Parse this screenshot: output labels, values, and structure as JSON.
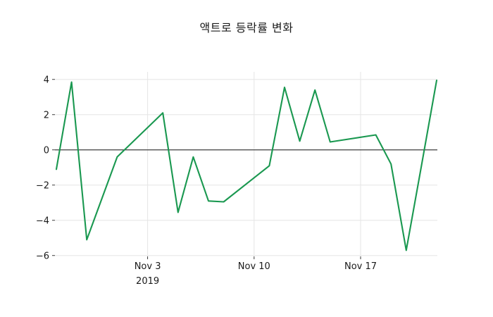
{
  "title": "액트로 등락률 변화",
  "colors": {
    "line": "#1a9850",
    "zero_line": "#3f3f3f",
    "grid": "#e5e5e5",
    "tick": "#262626",
    "text": "#1a1a1a",
    "background": "#ffffff"
  },
  "chart_data": {
    "type": "line",
    "title": "액트로 등락률 변화",
    "xlabel": "",
    "ylabel": "",
    "legend": "none",
    "grid": true,
    "zero_line": true,
    "line_color": "#1a9850",
    "ylim": [
      -6.05,
      4.43
    ],
    "xlim_days": [
      -0.093,
      25.046
    ],
    "y_ticks": [
      4,
      2,
      0,
      -2,
      -4,
      -6
    ],
    "x_ticks": [
      {
        "day": 6,
        "label": "Nov 3",
        "sublabel": "2019"
      },
      {
        "day": 13,
        "label": "Nov 10",
        "sublabel": ""
      },
      {
        "day": 20,
        "label": "Nov 17",
        "sublabel": ""
      }
    ],
    "points": [
      {
        "date": "2019-10-28",
        "day": 0,
        "value": -1.1
      },
      {
        "date": "2019-10-29",
        "day": 1,
        "value": 3.85
      },
      {
        "date": "2019-10-30",
        "day": 2,
        "value": -5.1
      },
      {
        "date": "2019-10-31",
        "day": 3,
        "value": -2.75
      },
      {
        "date": "2019-11-01",
        "day": 4,
        "value": -0.4
      },
      {
        "date": "2019-11-04",
        "day": 7,
        "value": 2.1
      },
      {
        "date": "2019-11-05",
        "day": 8,
        "value": -3.55
      },
      {
        "date": "2019-11-06",
        "day": 9,
        "value": -0.4
      },
      {
        "date": "2019-11-07",
        "day": 10,
        "value": -2.9
      },
      {
        "date": "2019-11-08",
        "day": 11,
        "value": -2.95
      },
      {
        "date": "2019-11-11",
        "day": 14,
        "value": -0.9
      },
      {
        "date": "2019-11-12",
        "day": 15,
        "value": 3.55
      },
      {
        "date": "2019-11-13",
        "day": 16,
        "value": 0.5
      },
      {
        "date": "2019-11-14",
        "day": 17,
        "value": 3.4
      },
      {
        "date": "2019-11-15",
        "day": 18,
        "value": 0.45
      },
      {
        "date": "2019-11-18",
        "day": 21,
        "value": 0.85
      },
      {
        "date": "2019-11-19",
        "day": 22,
        "value": -0.8
      },
      {
        "date": "2019-11-20",
        "day": 23,
        "value": -5.7
      },
      {
        "date": "2019-11-21",
        "day": 24,
        "value": -0.9
      },
      {
        "date": "2019-11-22",
        "day": 25,
        "value": 3.95
      }
    ]
  }
}
